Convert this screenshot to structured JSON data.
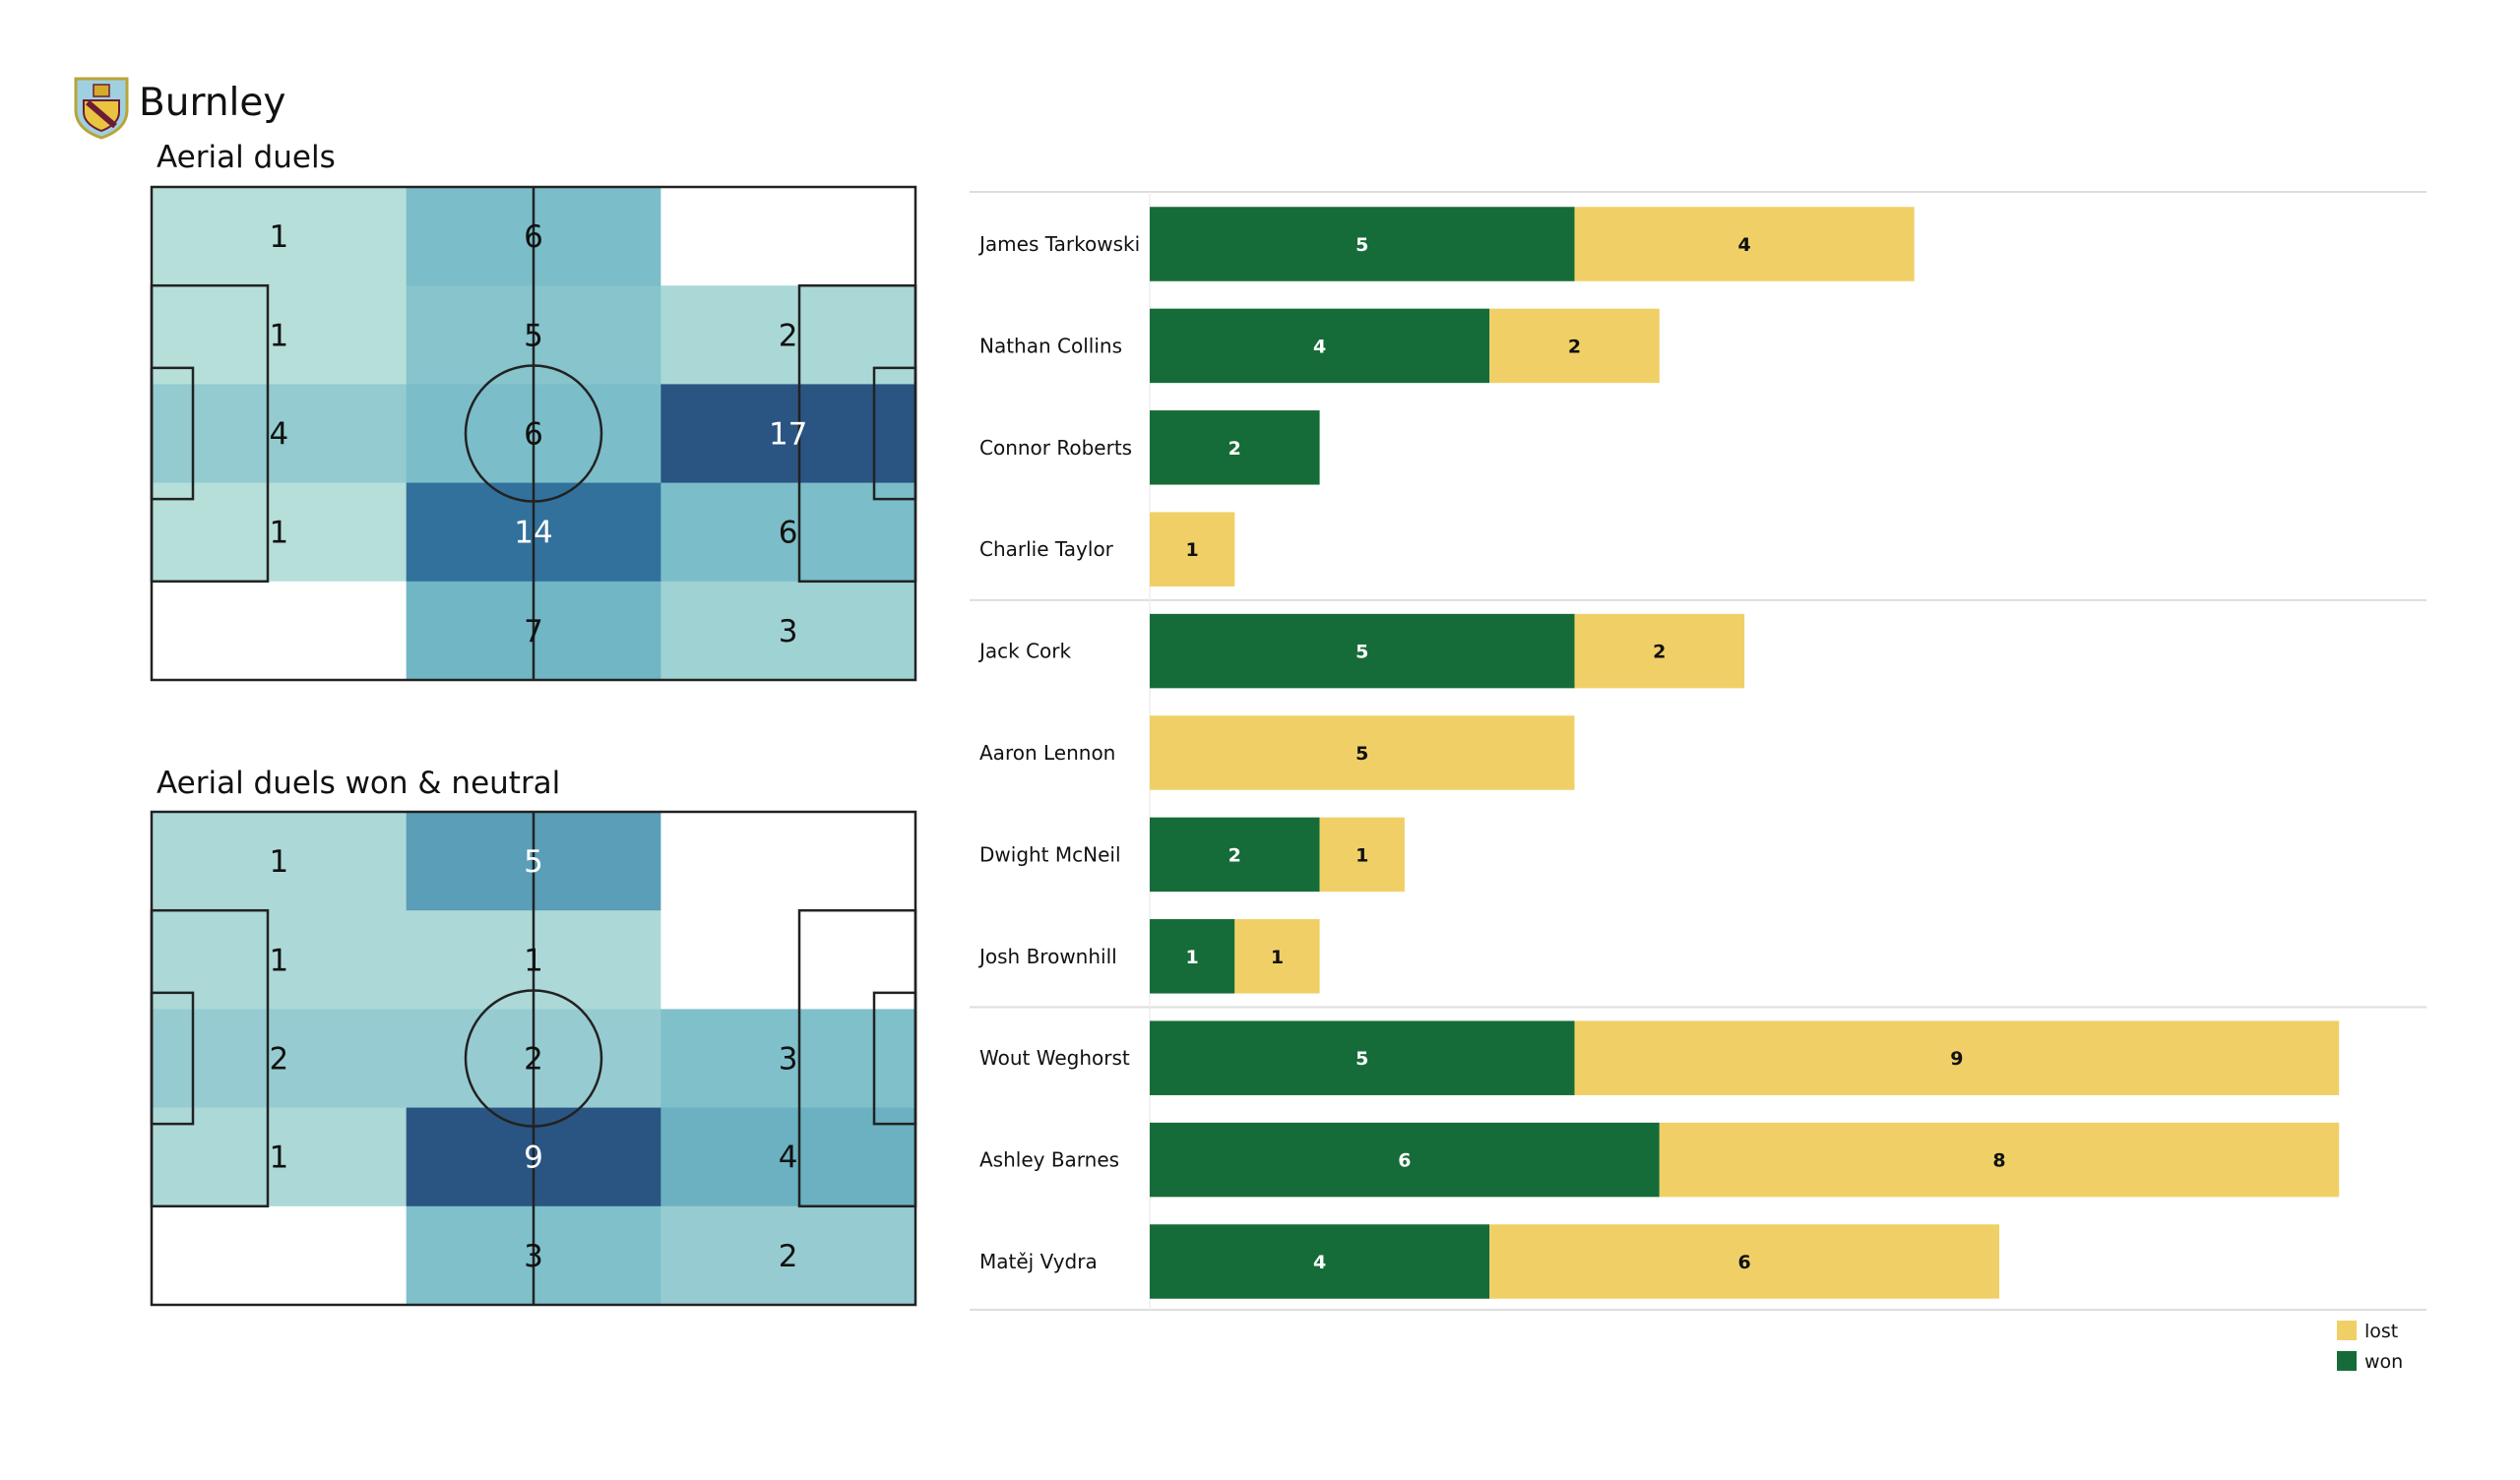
{
  "header": {
    "team": "Burnley",
    "logo_icon": "burnley-crest-icon"
  },
  "colors": {
    "won": "#166c38",
    "lost": "#f0d066",
    "heat_low": "#c2e6de",
    "heat_high": "#2a5582",
    "line": "#222222"
  },
  "chart_data": [
    {
      "type": "heatmap",
      "title": "Aerial duels",
      "grid": [
        [
          1,
          6,
          0
        ],
        [
          1,
          5,
          2
        ],
        [
          4,
          6,
          17
        ],
        [
          1,
          14,
          6
        ],
        [
          0,
          7,
          3
        ]
      ]
    },
    {
      "type": "heatmap",
      "title": "Aerial duels won & neutral",
      "grid": [
        [
          1,
          5,
          0
        ],
        [
          1,
          1,
          0
        ],
        [
          2,
          2,
          3
        ],
        [
          1,
          9,
          4
        ],
        [
          0,
          3,
          2
        ]
      ]
    },
    {
      "type": "bar",
      "orientation": "horizontal",
      "stacked": true,
      "categories": [
        "James  Tarkowski",
        "Nathan Collins",
        "Connor Roberts",
        "Charlie Taylor",
        "Jack Cork",
        "Aaron  Lennon",
        "Dwight McNeil",
        "Josh Brownhill",
        "Wout Weghorst",
        "Ashley Barnes",
        "Matěj Vydra"
      ],
      "groups_after": [
        3,
        7
      ],
      "series": [
        {
          "name": "won",
          "values": [
            5,
            4,
            2,
            0,
            5,
            0,
            2,
            1,
            5,
            6,
            4
          ]
        },
        {
          "name": "lost",
          "values": [
            4,
            2,
            0,
            1,
            2,
            5,
            1,
            1,
            9,
            8,
            6
          ]
        }
      ],
      "legend": [
        "lost",
        "won"
      ],
      "legend_position": "bottom-right"
    }
  ]
}
